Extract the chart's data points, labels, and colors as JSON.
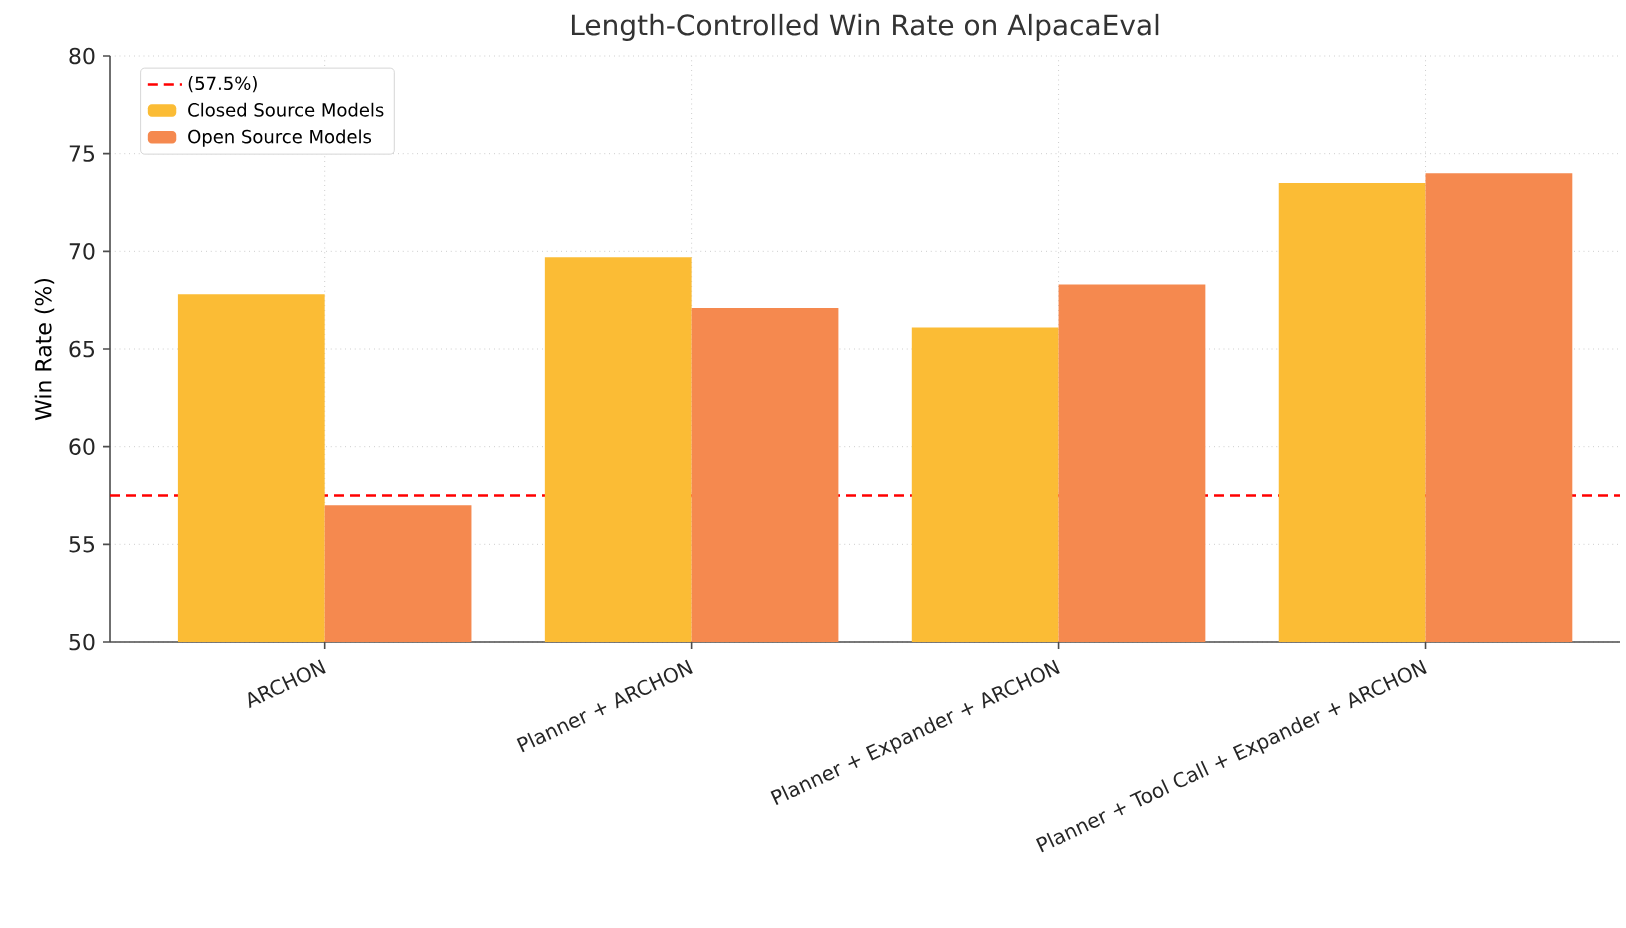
{
  "chart_data": {
    "type": "bar",
    "title": "Length-Controlled Win Rate on AlpacaEval",
    "ylabel": "Win Rate (%)",
    "categories": [
      "ARCHON",
      "Planner + ARCHON",
      "Planner + Expander + ARCHON",
      "Planner + Tool Call + Expander + ARCHON"
    ],
    "series": [
      {
        "name": "Closed Source Models",
        "color": "#fbbc35",
        "values": [
          67.8,
          69.7,
          66.1,
          73.5
        ]
      },
      {
        "name": "Open Source Models",
        "color": "#f5894f",
        "values": [
          57.0,
          67.1,
          68.3,
          74.0
        ]
      }
    ],
    "ylim": [
      50,
      80
    ],
    "yticks": [
      50,
      55,
      60,
      65,
      70,
      75,
      80
    ],
    "ref_lines": [
      {
        "axis": "y",
        "value": 57.5,
        "label": "(57.5%)",
        "color": "#ff0000",
        "line_style": "dashed"
      }
    ],
    "grid": true,
    "legend": "top left"
  }
}
